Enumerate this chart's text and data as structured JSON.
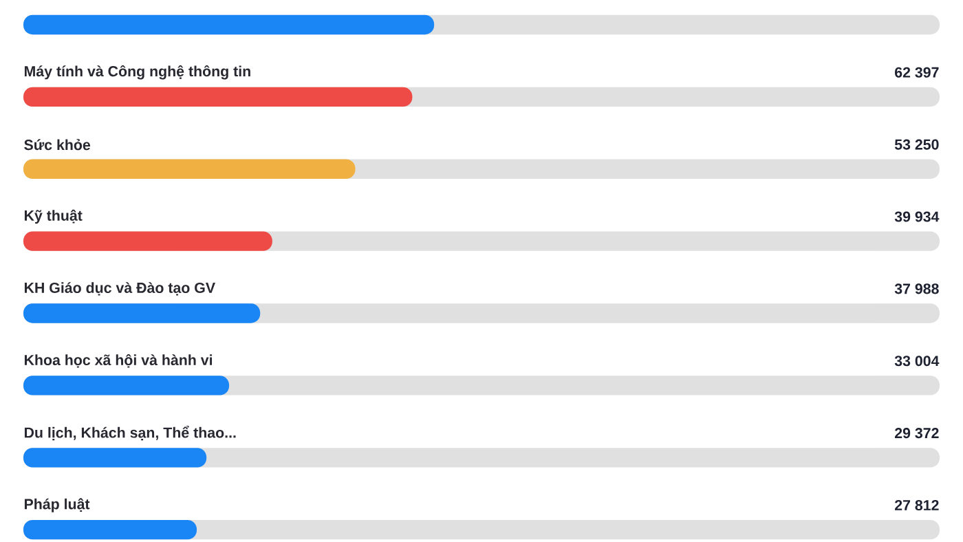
{
  "chart_data": {
    "type": "bar",
    "orientation": "horizontal",
    "categories": [
      null,
      "Máy tính và Công nghệ thông tin",
      "Sức khỏe",
      "Kỹ thuật",
      "KH Giáo dục và Đào tạo GV",
      "Khoa học xã hội và hành vi",
      "Du lịch, Khách sạn, Thể thao...",
      "Pháp luật"
    ],
    "values": [
      65900,
      62397,
      53250,
      39934,
      37988,
      33004,
      29372,
      27812
    ],
    "value_labels": [
      null,
      "62 397",
      "53 250",
      "39 934",
      "37 988",
      "33 004",
      "29 372",
      "27 812"
    ],
    "colors": [
      "#1a86f5",
      "#ee4a46",
      "#f0b042",
      "#ee4a46",
      "#1a86f5",
      "#1a86f5",
      "#1a86f5",
      "#1a86f5"
    ],
    "xlim": [
      0,
      147000
    ]
  }
}
